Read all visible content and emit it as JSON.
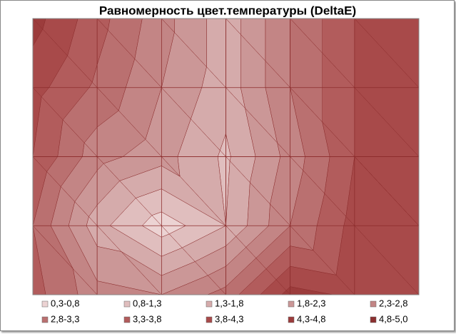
{
  "chart_data": {
    "type": "contour",
    "title": "Равномерность цвет.температуры (DeltaE)",
    "z": [
      [
        4.5,
        3.5,
        2.5,
        1.5,
        2.8,
        3.8,
        4.3
      ],
      [
        4.0,
        3.2,
        2.3,
        1.5,
        2.8,
        3.8,
        4.3
      ],
      [
        3.8,
        2.5,
        2.0,
        1.2,
        2.5,
        3.8,
        4.3
      ],
      [
        3.3,
        1.5,
        0.5,
        1.3,
        2.8,
        4.0,
        3.8
      ],
      [
        3.5,
        2.5,
        2.3,
        3.0,
        4.5,
        4.2,
        3.8
      ]
    ],
    "bands": [
      {
        "name": "0,3-0,8",
        "range": [
          0.3,
          0.8
        ],
        "color": "#ecd3d3"
      },
      {
        "name": "0,8-1,3",
        "range": [
          0.8,
          1.3
        ],
        "color": "#e0bebe"
      },
      {
        "name": "1,3-1,8",
        "range": [
          1.3,
          1.8
        ],
        "color": "#d5abab"
      },
      {
        "name": "1,8-2,3",
        "range": [
          1.8,
          2.3
        ],
        "color": "#cb9797"
      },
      {
        "name": "2,3-2,8",
        "range": [
          2.3,
          2.8
        ],
        "color": "#c38585"
      },
      {
        "name": "2,8-3,3",
        "range": [
          2.8,
          3.3
        ],
        "color": "#ba7070"
      },
      {
        "name": "3,3-3,8",
        "range": [
          3.3,
          3.8
        ],
        "color": "#b25c5c"
      },
      {
        "name": "3,8-4,3",
        "range": [
          3.8,
          4.3
        ],
        "color": "#a84a4a"
      },
      {
        "name": "4,3-4,8",
        "range": [
          4.3,
          4.8
        ],
        "color": "#9c3c3c"
      },
      {
        "name": "4,8-5,0",
        "range": [
          4.8,
          5.0
        ],
        "color": "#8c3030"
      }
    ],
    "grid": true
  }
}
